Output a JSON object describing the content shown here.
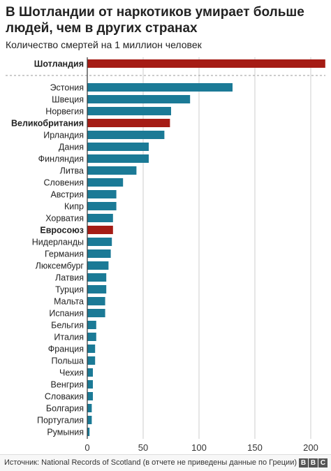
{
  "title": "В Шотландии от наркотиков умирает больше людей, чем в других странах",
  "subtitle": "Количество смертей на 1 миллион человек",
  "source": "Источник: National Records of Scotland (в отчете не приведены данные по Греции)",
  "logo": {
    "letters": [
      "B",
      "B",
      "C"
    ]
  },
  "colors": {
    "highlight": "#a51c15",
    "default": "#1b7a96",
    "grid": "#cccccc",
    "axis": "#333333"
  },
  "chart_data": {
    "type": "bar",
    "orientation": "horizontal",
    "title": "В Шотландии от наркотиков умирает больше людей, чем в других странах",
    "subtitle": "Количество смертей на 1 миллион человек",
    "categories": [
      "Шотландия",
      "Эстония",
      "Швеция",
      "Норвегия",
      "Великобритания",
      "Ирландия",
      "Дания",
      "Финляндия",
      "Литва",
      "Словения",
      "Австрия",
      "Кипр",
      "Хорватия",
      "Евросоюз",
      "Нидерланды",
      "Германия",
      "Люксембург",
      "Латвия",
      "Турция",
      "Мальта",
      "Испания",
      "Бельгия",
      "Италия",
      "Франция",
      "Польша",
      "Чехия",
      "Венгрия",
      "Словакия",
      "Болгария",
      "Португалия",
      "Румыния"
    ],
    "values": [
      213,
      130,
      92,
      75,
      74,
      69,
      55,
      55,
      44,
      32,
      26,
      26,
      23,
      23,
      22,
      21,
      19,
      17,
      17,
      16,
      16,
      8,
      8,
      7,
      7,
      5,
      5,
      5,
      4,
      4,
      2
    ],
    "highlighted": [
      "Шотландия",
      "Великобритания",
      "Евросоюз"
    ],
    "separator_after": "Шотландия",
    "x_ticks": [
      0,
      50,
      100,
      150,
      200
    ],
    "xlim": [
      0,
      215
    ],
    "grid": "vertical"
  }
}
